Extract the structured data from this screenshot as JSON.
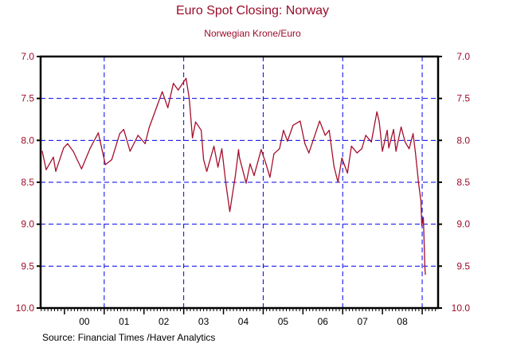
{
  "chart_data": {
    "type": "line",
    "title": "Euro Spot Closing: Norway",
    "subtitle": "Norwegian Krone/Euro",
    "source": "Source:  Financial Times /Haver Analytics",
    "xlabel": "",
    "ylabel": "",
    "xlim": [
      1999.4,
      2009.4
    ],
    "ylim": [
      7.0,
      10.0
    ],
    "y_inverted": true,
    "grid": true,
    "grid_x": [
      2001,
      2003,
      2005,
      2007,
      2009
    ],
    "grid_y": [
      7.5,
      8.0,
      8.5,
      9.0,
      9.5
    ],
    "y_ticks": [
      "7.0",
      "7.5",
      "8.0",
      "8.5",
      "9.0",
      "9.5",
      "10.0"
    ],
    "x_tick_labels": [
      "00",
      "01",
      "02",
      "03",
      "04",
      "05",
      "06",
      "07",
      "08"
    ],
    "colors": {
      "line": "#a50f2d",
      "grid": "#0000ee",
      "axis": "#000000",
      "label": "#9b0d2a"
    },
    "series": [
      {
        "name": "Norwegian Krone/Euro",
        "x": [
          1999.44,
          1999.54,
          1999.72,
          1999.78,
          1999.98,
          2000.08,
          2000.22,
          2000.43,
          2000.65,
          2000.85,
          2001.03,
          2001.19,
          2001.39,
          2001.49,
          2001.65,
          2001.85,
          2002.03,
          2002.13,
          2002.33,
          2002.46,
          2002.6,
          2002.74,
          2002.86,
          2003.06,
          2003.14,
          2003.22,
          2003.3,
          2003.44,
          2003.5,
          2003.58,
          2003.76,
          2003.86,
          2003.96,
          2004.06,
          2004.16,
          2004.3,
          2004.38,
          2004.4,
          2004.57,
          2004.67,
          2004.77,
          2004.95,
          2005.07,
          2005.17,
          2005.27,
          2005.41,
          2005.51,
          2005.61,
          2005.75,
          2005.93,
          2006.05,
          2006.15,
          2006.42,
          2006.56,
          2006.66,
          2006.78,
          2006.88,
          2006.98,
          2007.12,
          2007.22,
          2007.36,
          2007.48,
          2007.58,
          2007.72,
          2007.86,
          2007.92,
          2008.0,
          2008.12,
          2008.16,
          2008.28,
          2008.34,
          2008.47,
          2008.57,
          2008.67,
          2008.77,
          2008.83,
          2008.91,
          2008.97,
          2008.99,
          2009.03,
          2009.07,
          2009.08
        ],
        "values": [
          8.13,
          8.35,
          8.2,
          8.37,
          8.09,
          8.04,
          8.13,
          8.34,
          8.09,
          7.91,
          8.29,
          8.23,
          7.92,
          7.87,
          8.13,
          7.94,
          8.04,
          7.85,
          7.59,
          7.42,
          7.61,
          7.32,
          7.4,
          7.26,
          7.5,
          7.97,
          7.78,
          7.88,
          8.23,
          8.37,
          8.07,
          8.32,
          8.1,
          8.51,
          8.85,
          8.42,
          8.11,
          8.2,
          8.51,
          8.28,
          8.42,
          8.11,
          8.28,
          8.44,
          8.16,
          8.1,
          7.88,
          8.01,
          7.82,
          7.77,
          8.04,
          8.15,
          7.77,
          7.94,
          7.88,
          8.31,
          8.5,
          8.21,
          8.39,
          8.07,
          8.15,
          8.1,
          7.94,
          8.02,
          7.66,
          7.78,
          8.13,
          7.88,
          8.09,
          7.87,
          8.13,
          7.84,
          8.02,
          8.1,
          7.92,
          8.15,
          8.51,
          8.73,
          9.02,
          8.92,
          9.53,
          9.6
        ]
      }
    ]
  }
}
